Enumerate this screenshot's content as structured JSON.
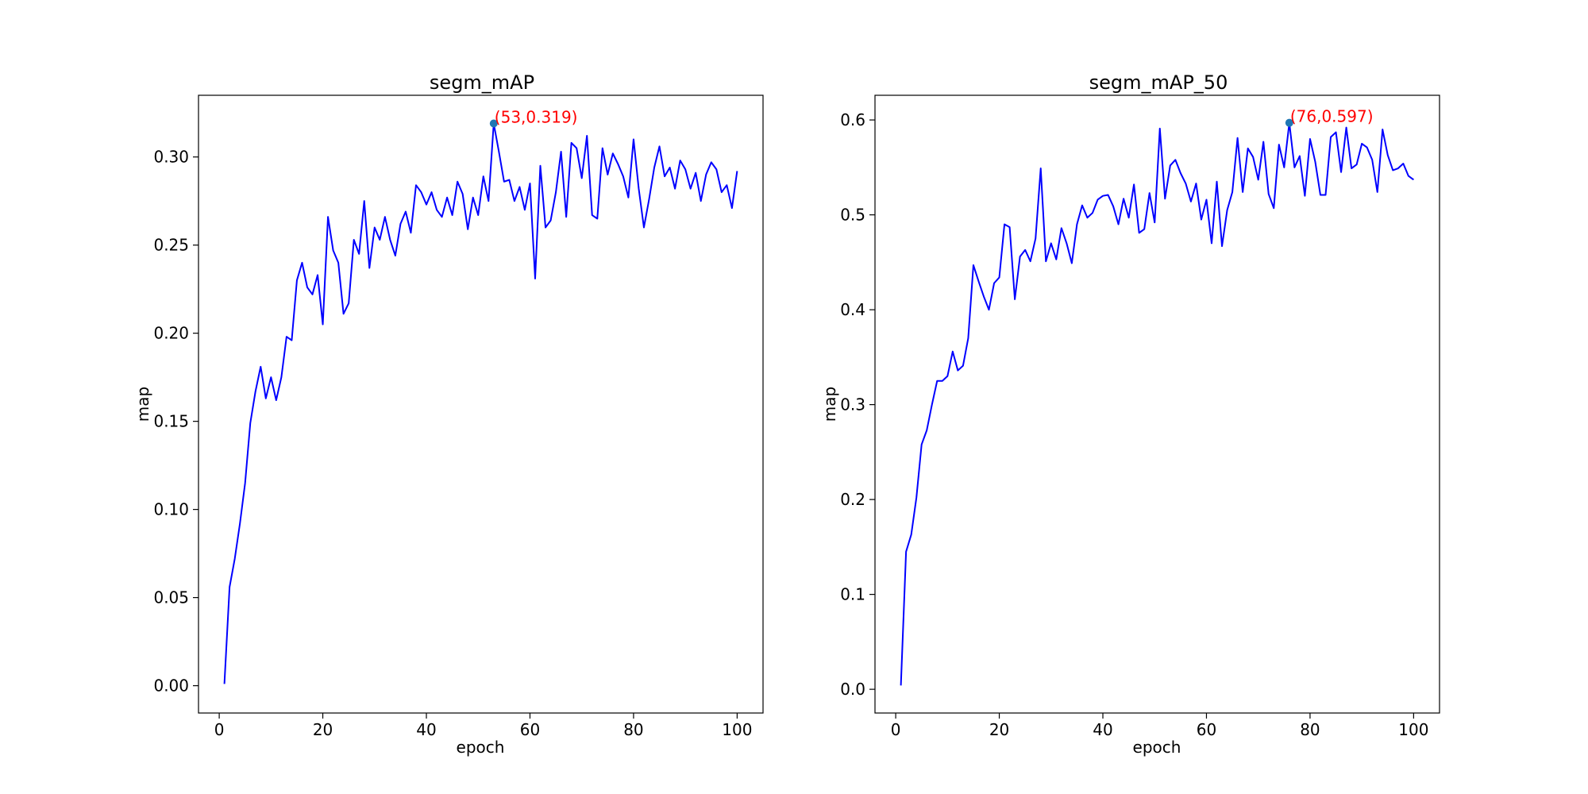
{
  "chart_data": [
    {
      "type": "line",
      "title": "segm_mAP",
      "xlabel": "epoch",
      "ylabel": "map",
      "xlim": [
        -4,
        105
      ],
      "ylim": [
        -0.0155,
        0.335
      ],
      "xticks": [
        0,
        20,
        40,
        60,
        80,
        100
      ],
      "xtick_labels": [
        "0",
        "20",
        "40",
        "60",
        "80",
        "100"
      ],
      "yticks": [
        0.0,
        0.05,
        0.1,
        0.15,
        0.2,
        0.25,
        0.3
      ],
      "ytick_labels": [
        "0.00",
        "0.05",
        "0.10",
        "0.15",
        "0.20",
        "0.25",
        "0.30"
      ],
      "grid": false,
      "series": [
        {
          "color": "#0000ff",
          "x": [
            1,
            2,
            3,
            4,
            5,
            6,
            7,
            8,
            9,
            10,
            11,
            12,
            13,
            14,
            15,
            16,
            17,
            18,
            19,
            20,
            21,
            22,
            23,
            24,
            25,
            26,
            27,
            28,
            29,
            30,
            31,
            32,
            33,
            34,
            35,
            36,
            37,
            38,
            39,
            40,
            41,
            42,
            43,
            44,
            45,
            46,
            47,
            48,
            49,
            50,
            51,
            52,
            53,
            54,
            55,
            56,
            57,
            58,
            59,
            60,
            61,
            62,
            63,
            64,
            65,
            66,
            67,
            68,
            69,
            70,
            71,
            72,
            73,
            74,
            75,
            76,
            77,
            78,
            79,
            80,
            81,
            82,
            83,
            84,
            85,
            86,
            87,
            88,
            89,
            90,
            91,
            92,
            93,
            94,
            95,
            96,
            97,
            98,
            99,
            100
          ],
          "y": [
            0.001,
            0.056,
            0.072,
            0.092,
            0.115,
            0.149,
            0.167,
            0.181,
            0.163,
            0.175,
            0.162,
            0.175,
            0.198,
            0.196,
            0.23,
            0.24,
            0.226,
            0.222,
            0.233,
            0.205,
            0.266,
            0.247,
            0.24,
            0.211,
            0.217,
            0.253,
            0.245,
            0.275,
            0.237,
            0.26,
            0.253,
            0.266,
            0.253,
            0.244,
            0.262,
            0.269,
            0.257,
            0.284,
            0.28,
            0.273,
            0.28,
            0.27,
            0.266,
            0.277,
            0.267,
            0.286,
            0.279,
            0.259,
            0.277,
            0.267,
            0.289,
            0.275,
            0.319,
            0.303,
            0.286,
            0.287,
            0.275,
            0.283,
            0.27,
            0.285,
            0.231,
            0.295,
            0.26,
            0.264,
            0.28,
            0.303,
            0.266,
            0.308,
            0.305,
            0.288,
            0.312,
            0.267,
            0.265,
            0.305,
            0.29,
            0.302,
            0.296,
            0.289,
            0.277,
            0.31,
            0.282,
            0.26,
            0.276,
            0.294,
            0.306,
            0.289,
            0.294,
            0.282,
            0.298,
            0.293,
            0.282,
            0.291,
            0.275,
            0.29,
            0.297,
            0.293,
            0.28,
            0.284,
            0.271,
            0.292
          ]
        }
      ],
      "highlight": {
        "x": 53,
        "y": 0.319,
        "label": "(53,0.319)",
        "label_color": "#ff0000",
        "marker_color": "#1f77b4"
      }
    },
    {
      "type": "line",
      "title": "segm_mAP_50",
      "xlabel": "epoch",
      "ylabel": "map",
      "xlim": [
        -4,
        105
      ],
      "ylim": [
        -0.025,
        0.626
      ],
      "xticks": [
        0,
        20,
        40,
        60,
        80,
        100
      ],
      "xtick_labels": [
        "0",
        "20",
        "40",
        "60",
        "80",
        "100"
      ],
      "yticks": [
        0.0,
        0.1,
        0.2,
        0.3,
        0.4,
        0.5,
        0.6
      ],
      "ytick_labels": [
        "0.0",
        "0.1",
        "0.2",
        "0.3",
        "0.4",
        "0.5",
        "0.6"
      ],
      "grid": false,
      "series": [
        {
          "color": "#0000ff",
          "x": [
            1,
            2,
            3,
            4,
            5,
            6,
            7,
            8,
            9,
            10,
            11,
            12,
            13,
            14,
            15,
            16,
            17,
            18,
            19,
            20,
            21,
            22,
            23,
            24,
            25,
            26,
            27,
            28,
            29,
            30,
            31,
            32,
            33,
            34,
            35,
            36,
            37,
            38,
            39,
            40,
            41,
            42,
            43,
            44,
            45,
            46,
            47,
            48,
            49,
            50,
            51,
            52,
            53,
            54,
            55,
            56,
            57,
            58,
            59,
            60,
            61,
            62,
            63,
            64,
            65,
            66,
            67,
            68,
            69,
            70,
            71,
            72,
            73,
            74,
            75,
            76,
            77,
            78,
            79,
            80,
            81,
            82,
            83,
            84,
            85,
            86,
            87,
            88,
            89,
            90,
            91,
            92,
            93,
            94,
            95,
            96,
            97,
            98,
            99,
            100
          ],
          "y": [
            0.004,
            0.145,
            0.163,
            0.202,
            0.258,
            0.273,
            0.3,
            0.325,
            0.325,
            0.33,
            0.356,
            0.336,
            0.341,
            0.37,
            0.447,
            0.43,
            0.414,
            0.4,
            0.428,
            0.434,
            0.49,
            0.487,
            0.411,
            0.456,
            0.463,
            0.451,
            0.475,
            0.549,
            0.451,
            0.47,
            0.453,
            0.486,
            0.47,
            0.449,
            0.49,
            0.51,
            0.497,
            0.502,
            0.516,
            0.52,
            0.521,
            0.509,
            0.49,
            0.517,
            0.497,
            0.532,
            0.481,
            0.485,
            0.523,
            0.492,
            0.591,
            0.517,
            0.552,
            0.558,
            0.544,
            0.533,
            0.514,
            0.533,
            0.495,
            0.516,
            0.47,
            0.535,
            0.467,
            0.505,
            0.524,
            0.581,
            0.524,
            0.57,
            0.561,
            0.537,
            0.577,
            0.522,
            0.507,
            0.574,
            0.55,
            0.597,
            0.55,
            0.562,
            0.52,
            0.58,
            0.556,
            0.521,
            0.521,
            0.582,
            0.587,
            0.545,
            0.592,
            0.549,
            0.553,
            0.575,
            0.571,
            0.558,
            0.524,
            0.59,
            0.563,
            0.547,
            0.549,
            0.554,
            0.541,
            0.537
          ]
        }
      ],
      "highlight": {
        "x": 76,
        "y": 0.597,
        "label": "(76,0.597)",
        "label_color": "#ff0000",
        "marker_color": "#1f77b4"
      }
    }
  ]
}
